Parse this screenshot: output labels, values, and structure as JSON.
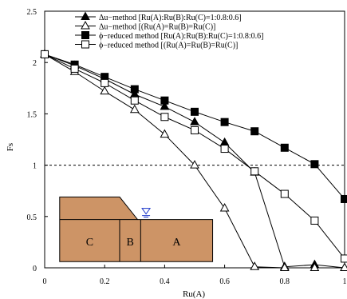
{
  "chart_data": {
    "type": "line",
    "xlabel": "Ru(A)",
    "ylabel": "Fs",
    "xlim": [
      0,
      1
    ],
    "ylim": [
      0,
      2.5
    ],
    "x_ticks": [
      {
        "value": 0,
        "label": "0"
      },
      {
        "value": 0.2,
        "label": "0.2"
      },
      {
        "value": 0.4,
        "label": "0.4"
      },
      {
        "value": 0.6,
        "label": "0.6"
      },
      {
        "value": 0.8,
        "label": "0.8"
      },
      {
        "value": 1,
        "label": "1"
      }
    ],
    "y_ticks": [
      {
        "value": 0,
        "label": "0"
      },
      {
        "value": 0.5,
        "label": "0.5"
      },
      {
        "value": 1,
        "label": "1"
      },
      {
        "value": 1.5,
        "label": "1.5"
      },
      {
        "value": 2,
        "label": "2"
      },
      {
        "value": 2.5,
        "label": "2.5"
      }
    ],
    "reference_line": {
      "y": 1,
      "style": "dashed"
    },
    "legend_placement": "top",
    "series": [
      {
        "name": "Δu−method [Ru(A):Ru(B):Ru(C)=1:0.8:0.6]",
        "marker": "triangle-filled",
        "x": [
          0,
          0.1,
          0.2,
          0.3,
          0.4,
          0.5,
          0.6,
          0.7,
          0.8,
          0.9,
          1.0
        ],
        "y": [
          2.08,
          1.97,
          1.84,
          1.69,
          1.57,
          1.42,
          1.22,
          0.93,
          0.01,
          0.03,
          0.0
        ]
      },
      {
        "name": "Δu−method [(Ru(A)=Ru(B)=Ru(C)]",
        "marker": "triangle-open",
        "x": [
          0,
          0.1,
          0.2,
          0.3,
          0.4,
          0.5,
          0.6,
          0.7,
          0.8,
          0.9,
          1.0
        ],
        "y": [
          2.08,
          1.91,
          1.72,
          1.54,
          1.3,
          1.0,
          0.58,
          0.01,
          0.0,
          0.0,
          0.0
        ]
      },
      {
        "name": "ϕ−reduced method [Ru(A):Ru(B):Ru(C)=1:0.8:0.6]",
        "marker": "square-filled",
        "x": [
          0,
          0.1,
          0.2,
          0.3,
          0.4,
          0.5,
          0.6,
          0.7,
          0.8,
          0.9,
          1.0
        ],
        "y": [
          2.08,
          1.98,
          1.86,
          1.74,
          1.63,
          1.52,
          1.42,
          1.33,
          1.17,
          1.01,
          0.67
        ]
      },
      {
        "name": "ϕ−reduced method [(Ru(A)=Ru(B)=Ru(C)]",
        "marker": "square-open",
        "x": [
          0,
          0.1,
          0.2,
          0.3,
          0.4,
          0.5,
          0.6,
          0.7,
          0.8,
          0.9,
          1.0
        ],
        "y": [
          2.08,
          1.94,
          1.8,
          1.63,
          1.47,
          1.34,
          1.16,
          0.94,
          0.72,
          0.46,
          0.09
        ]
      }
    ],
    "inset": {
      "zones": [
        "C",
        "B",
        "A"
      ],
      "fill_color": "#cd9466",
      "water_symbol_color": "#1a35c9"
    }
  }
}
